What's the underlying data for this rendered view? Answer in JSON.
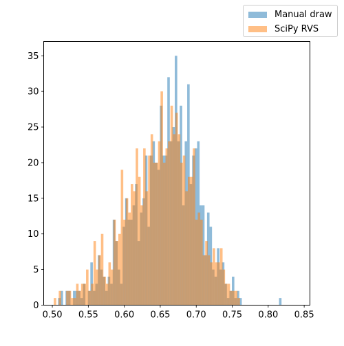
{
  "chart_data": {
    "type": "histogram",
    "title": "",
    "xlabel": "",
    "ylabel": "",
    "xlim": [
      0.488,
      0.858
    ],
    "ylim": [
      0,
      37
    ],
    "bin_width": 0.00345,
    "grid": false,
    "legend_position": "outside top-right",
    "xticks": [
      "0.50",
      "0.55",
      "0.60",
      "0.65",
      "0.70",
      "0.75",
      "0.80",
      "0.85"
    ],
    "xtick_values": [
      0.5,
      0.55,
      0.6,
      0.65,
      0.7,
      0.75,
      0.8,
      0.85
    ],
    "yticks": [
      "0",
      "5",
      "10",
      "15",
      "20",
      "25",
      "30",
      "35"
    ],
    "ytick_values": [
      0,
      5,
      10,
      15,
      20,
      25,
      30,
      35
    ],
    "series": [
      {
        "name": "Manual draw",
        "color": "#1f77b4",
        "opacity": 0.5,
        "bin_start": 0.508,
        "counts": [
          1,
          2,
          0,
          2,
          2,
          0,
          2,
          2,
          2,
          1,
          3,
          0,
          2,
          6,
          2,
          3,
          7,
          5,
          4,
          2,
          4,
          3,
          12,
          9,
          5,
          3,
          11,
          15,
          12,
          12,
          14,
          17,
          9,
          13,
          15,
          21,
          11,
          21,
          23,
          20,
          19,
          28,
          21,
          21,
          32,
          23,
          25,
          35,
          23,
          28,
          14,
          23,
          31,
          17,
          21,
          22,
          23,
          14,
          14,
          7,
          13,
          11,
          5,
          4,
          8,
          5,
          6,
          3,
          1,
          2,
          4,
          1,
          2,
          1,
          0,
          0,
          0,
          0,
          0,
          0,
          0,
          0,
          0,
          0,
          0,
          0,
          0,
          0,
          0,
          1
        ]
      },
      {
        "name": "SciPy RVS",
        "color": "#ff7f0e",
        "opacity": 0.5,
        "bin_start": 0.502,
        "counts": [
          1,
          0,
          2,
          0,
          0,
          2,
          2,
          1,
          1,
          3,
          2,
          3,
          3,
          5,
          2,
          3,
          9,
          5,
          7,
          10,
          4,
          3,
          6,
          5,
          12,
          9,
          10,
          19,
          12,
          15,
          13,
          17,
          16,
          22,
          18,
          14,
          22,
          16,
          21,
          24,
          20,
          20,
          23,
          30,
          20,
          22,
          23,
          28,
          24,
          27,
          24,
          20,
          21,
          16,
          18,
          18,
          22,
          12,
          13,
          12,
          7,
          9,
          7,
          6,
          8,
          6,
          6,
          8,
          5,
          3,
          3,
          2,
          2,
          2,
          1,
          0
        ]
      }
    ]
  }
}
